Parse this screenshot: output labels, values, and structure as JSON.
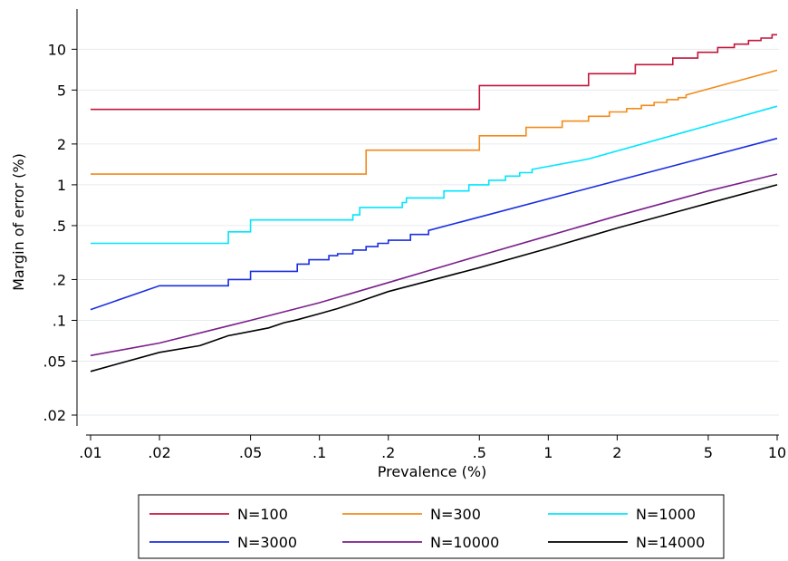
{
  "chart_data": {
    "type": "line",
    "xlabel": "Prevalence (%)",
    "ylabel": "Margin of error (%)",
    "x_scale": "log",
    "y_scale": "log",
    "xlim": [
      0.01,
      10
    ],
    "ylim": [
      0.02,
      15
    ],
    "x_ticks": [
      {
        "value": 0.01,
        "label": ".01"
      },
      {
        "value": 0.02,
        "label": ".02"
      },
      {
        "value": 0.05,
        "label": ".05"
      },
      {
        "value": 0.1,
        "label": ".1"
      },
      {
        "value": 0.2,
        "label": ".2"
      },
      {
        "value": 0.5,
        "label": ".5"
      },
      {
        "value": 1,
        "label": "1"
      },
      {
        "value": 2,
        "label": "2"
      },
      {
        "value": 5,
        "label": "5"
      },
      {
        "value": 10,
        "label": "10"
      }
    ],
    "y_ticks": [
      {
        "value": 0.02,
        "label": ".02"
      },
      {
        "value": 0.05,
        "label": ".05"
      },
      {
        "value": 0.1,
        "label": ".1"
      },
      {
        "value": 0.2,
        "label": ".2"
      },
      {
        "value": 0.5,
        "label": ".5"
      },
      {
        "value": 1,
        "label": "1"
      },
      {
        "value": 2,
        "label": "2"
      },
      {
        "value": 5,
        "label": "5"
      },
      {
        "value": 10,
        "label": "10"
      }
    ],
    "grid": "horizontal",
    "legend_position": "bottom",
    "series": [
      {
        "name": "N=100",
        "color": "#c0163b",
        "x": [
          0.01,
          0.5,
          0.5,
          1.5,
          1.5,
          2.4,
          2.4,
          3.5,
          3.5,
          4.5,
          4.5,
          5.5,
          5.5,
          6.5,
          6.5,
          7.5,
          7.5,
          8.5,
          8.5,
          9.5,
          9.5,
          10
        ],
        "y": [
          3.6,
          3.6,
          5.4,
          5.4,
          6.6,
          6.6,
          7.7,
          7.7,
          8.6,
          8.6,
          9.5,
          9.5,
          10.3,
          10.3,
          10.9,
          10.9,
          11.6,
          11.6,
          12.1,
          12.1,
          12.8,
          12.8
        ]
      },
      {
        "name": "N=300",
        "color": "#f28a1b",
        "x": [
          0.01,
          0.16,
          0.16,
          0.5,
          0.5,
          0.8,
          0.8,
          1.15,
          1.15,
          1.5,
          1.5,
          1.85,
          1.85,
          2.2,
          2.2,
          2.55,
          2.55,
          2.9,
          2.9,
          3.3,
          3.3,
          3.7,
          3.7,
          4.0,
          4.0,
          10
        ],
        "y": [
          1.2,
          1.2,
          1.8,
          1.8,
          2.3,
          2.3,
          2.65,
          2.65,
          2.95,
          2.95,
          3.2,
          3.2,
          3.45,
          3.45,
          3.65,
          3.65,
          3.85,
          3.85,
          4.05,
          4.05,
          4.25,
          4.25,
          4.4,
          4.4,
          4.6,
          7.0
        ]
      },
      {
        "name": "N=1000",
        "color": "#00e5ff",
        "x": [
          0.01,
          0.04,
          0.04,
          0.05,
          0.05,
          0.14,
          0.14,
          0.15,
          0.15,
          0.23,
          0.23,
          0.24,
          0.24,
          0.35,
          0.35,
          0.45,
          0.45,
          0.55,
          0.55,
          0.65,
          0.65,
          0.75,
          0.75,
          0.85,
          0.85,
          1.5,
          10
        ],
        "y": [
          0.37,
          0.37,
          0.45,
          0.45,
          0.55,
          0.55,
          0.6,
          0.6,
          0.68,
          0.68,
          0.74,
          0.74,
          0.8,
          0.8,
          0.9,
          0.9,
          1.0,
          1.0,
          1.08,
          1.08,
          1.16,
          1.16,
          1.23,
          1.23,
          1.3,
          1.55,
          3.8
        ]
      },
      {
        "name": "N=3000",
        "color": "#1a2ee0",
        "x": [
          0.01,
          0.02,
          0.02,
          0.04,
          0.04,
          0.05,
          0.05,
          0.08,
          0.08,
          0.09,
          0.09,
          0.11,
          0.11,
          0.12,
          0.12,
          0.14,
          0.14,
          0.16,
          0.16,
          0.18,
          0.18,
          0.2,
          0.2,
          0.25,
          0.25,
          0.3,
          0.3,
          10
        ],
        "y": [
          0.12,
          0.18,
          0.18,
          0.18,
          0.2,
          0.2,
          0.23,
          0.23,
          0.26,
          0.26,
          0.28,
          0.28,
          0.3,
          0.3,
          0.31,
          0.31,
          0.33,
          0.33,
          0.35,
          0.35,
          0.37,
          0.37,
          0.39,
          0.39,
          0.43,
          0.43,
          0.46,
          2.2
        ]
      },
      {
        "name": "N=10000",
        "color": "#7a1f8a",
        "x": [
          0.01,
          0.02,
          0.05,
          0.1,
          0.2,
          0.5,
          1,
          2,
          5,
          10
        ],
        "y": [
          0.055,
          0.068,
          0.1,
          0.135,
          0.19,
          0.3,
          0.42,
          0.59,
          0.9,
          1.2
        ]
      },
      {
        "name": "N=14000",
        "color": "#000000",
        "x": [
          0.01,
          0.02,
          0.03,
          0.04,
          0.06,
          0.07,
          0.08,
          0.1,
          0.12,
          0.15,
          0.2,
          0.5,
          1,
          2,
          5,
          10
        ],
        "y": [
          0.042,
          0.058,
          0.065,
          0.077,
          0.088,
          0.096,
          0.101,
          0.112,
          0.122,
          0.138,
          0.163,
          0.245,
          0.34,
          0.48,
          0.73,
          1.0
        ]
      }
    ]
  }
}
